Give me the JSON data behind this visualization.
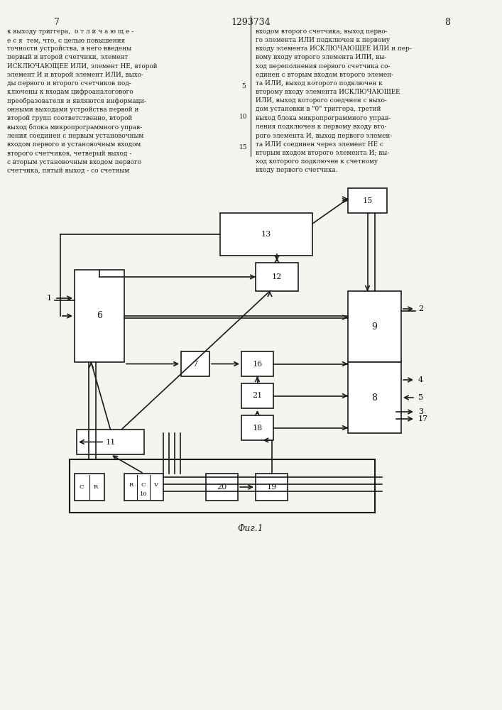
{
  "title": "1293734",
  "page_left": "7",
  "page_right": "8",
  "fig_label": "Фиг.1",
  "text_left": "к выходу триггера, о т л и ч а ю щ е -\nе с я  тем, что, с целью повышения\nточности устройства, в него введены\nпервый и второй счетчики, элемент\nИСКЛЮЧАЮЩЕЕ ИЛИ, элемент НЕ, второй\nэлемент И и второй элемент ИЛИ, выхо-\nды первого и второго счетчиков под-\nключены к входам цифроаналогового\nпреобразователя и являются информаци-\nонными выходами устройства первой и\nвторой группы соответственно, второй\nвыход блока микропрограммного управ-\nления соединен с первым установочным\nвходом первого и установочным входом\nвторого счетчиков, четверый выход -\nс вторым установочным входом первого\nсчетчика, пятый выход - со счетным",
  "text_right": "входом второго счетчика, выход перво-\nго элемента ИЛИ подключен к первому\nвходу элемента ИСКЛЮЧАЮЩЕЕ ИЛИ и пер-\nвому входу второго элемента ИЛИ, вы-\nход переполнения первого счетчика со-\nединен с вторым входом второго элемен-\nта ИЛИ, выход которого подключен к\nвторому входу элемента ИСКЛЮЧАЮЩЕЕ\nИЛИ, выход которого соедчнен с выхо-\nдом установки в «0» триггера, третий\nвыход блока микропрограммного управ-\nления подключен к первому входу вто-\nрого элемента И, выход первого элемен-\nта ИЛИ соединен через элемент НЕ с\nвторым входом второго элемента И; вы-\nход которого подключен к счетному\nвходу первого счетчика.",
  "line_numbers_left": [
    "5",
    "10",
    "15"
  ],
  "line_numbers_right": [
    "5",
    "10",
    "15"
  ],
  "background_color": "#f5f5f0",
  "text_color": "#1a1a1a",
  "diagram_color": "#1a1a1a"
}
